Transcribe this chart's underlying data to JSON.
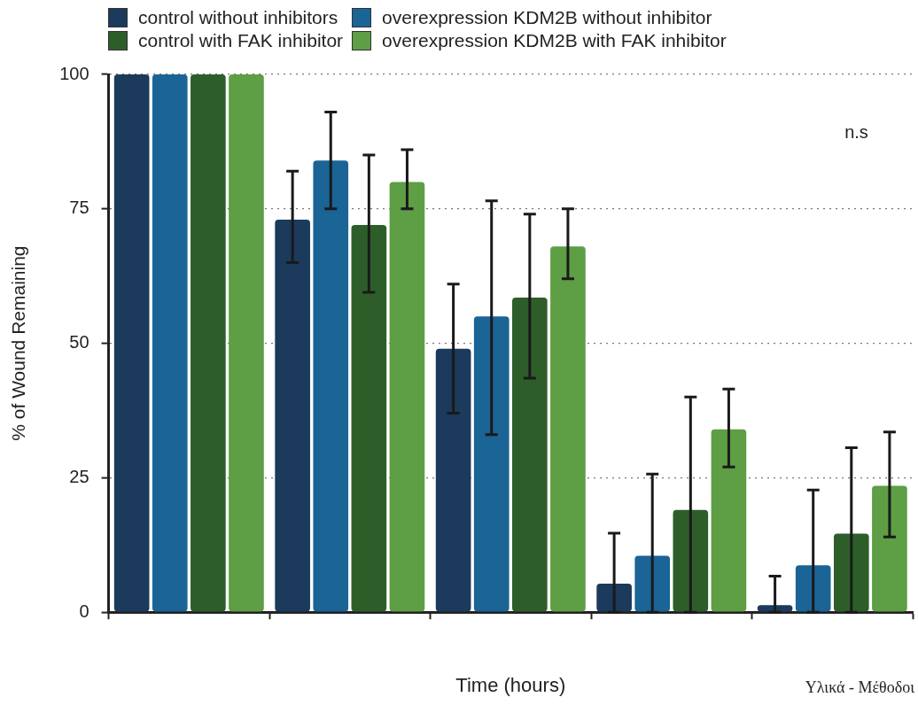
{
  "chart_data": {
    "type": "bar",
    "xlabel": "Time (hours)",
    "ylabel": "% of Wound Remaining",
    "categories": [
      null,
      null,
      null,
      null,
      null
    ],
    "series": [
      {
        "name": "control without inhibitors",
        "color": "#1b3a5c",
        "values": [
          100,
          73,
          49,
          5.3,
          1.3
        ],
        "errors": [
          null,
          [
            65,
            82
          ],
          [
            37,
            61
          ],
          [
            0,
            14.7
          ],
          [
            0,
            6.7
          ]
        ]
      },
      {
        "name": "overexpression KDM2B without inhibitor",
        "color": "#1a6496",
        "values": [
          100,
          84,
          55,
          10.5,
          8.7
        ],
        "errors": [
          null,
          [
            75,
            93
          ],
          [
            33,
            76.5
          ],
          [
            0,
            25.7
          ],
          [
            0,
            22.7
          ]
        ]
      },
      {
        "name": "control with FAK inhibitor",
        "color": "#2d5e2a",
        "values": [
          100,
          72,
          58.5,
          19,
          14.6
        ],
        "errors": [
          null,
          [
            59.5,
            85
          ],
          [
            43.5,
            74
          ],
          [
            0,
            40
          ],
          [
            0,
            30.6
          ]
        ]
      },
      {
        "name": "overexpression KDM2B with FAK inhibitor",
        "color": "#5e9e45",
        "values": [
          100,
          80,
          68,
          34,
          23.5
        ],
        "errors": [
          null,
          [
            75,
            86
          ],
          [
            62,
            75
          ],
          [
            27,
            41.5
          ],
          [
            14,
            33.5
          ]
        ]
      }
    ],
    "ylim": [
      0,
      100
    ],
    "yticks": [
      0,
      25,
      50,
      75,
      100
    ],
    "grid": "y",
    "legend": "top",
    "annotations": [
      "n.s",
      "Υλικά - Μέθοδοι"
    ]
  }
}
